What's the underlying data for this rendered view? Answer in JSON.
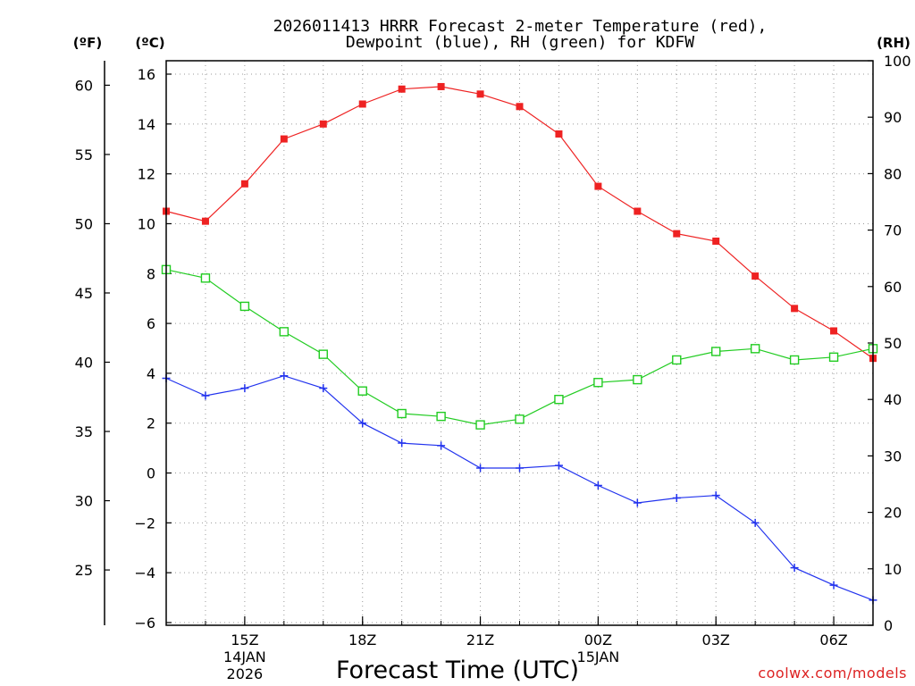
{
  "chart_data": {
    "type": "line",
    "title_line1": "2026011413 HRRR Forecast 2-meter Temperature (red),",
    "title_line2": "Dewpoint (blue), RH (green) for KDFW",
    "xlabel": "Forecast Time (UTC)",
    "unit_fahrenheit": "(ºF)",
    "unit_celsius": "(ºC)",
    "unit_rh": "(RH)",
    "credit": "coolwx.com/models",
    "x_hours": [
      13,
      14,
      15,
      16,
      17,
      18,
      19,
      20,
      21,
      22,
      23,
      24,
      25,
      26,
      27,
      28,
      29,
      30,
      31
    ],
    "xlim": [
      13,
      31
    ],
    "x_ticks": [
      {
        "hour": 15,
        "label": "15Z",
        "date": "14JAN",
        "year": "2026"
      },
      {
        "hour": 18,
        "label": "18Z"
      },
      {
        "hour": 21,
        "label": "21Z"
      },
      {
        "hour": 24,
        "label": "00Z",
        "date": "15JAN"
      },
      {
        "hour": 27,
        "label": "03Z"
      },
      {
        "hour": 30,
        "label": "06Z"
      }
    ],
    "ylim_celsius": [
      -6,
      16.5
    ],
    "ylim_rh": [
      0,
      100
    ],
    "celsius_ticks": [
      "16",
      "14",
      "12",
      "10",
      "8",
      "6",
      "4",
      "2",
      "0",
      "−2",
      "−4",
      "−6"
    ],
    "fahrenheit_ticks": [
      "60",
      "55",
      "50",
      "45",
      "40",
      "35",
      "30",
      "25"
    ],
    "rh_ticks": [
      "100",
      "90",
      "80",
      "70",
      "60",
      "50",
      "40",
      "30",
      "20",
      "10",
      "0"
    ],
    "series": [
      {
        "name": "Temperature",
        "units": "C",
        "color": "#ee2222",
        "marker": "filled-square",
        "values": [
          10.5,
          10.1,
          11.6,
          13.4,
          14.0,
          14.8,
          15.4,
          15.5,
          15.2,
          14.7,
          13.6,
          11.5,
          10.5,
          9.6,
          9.3,
          7.9,
          6.6,
          5.7,
          4.6
        ]
      },
      {
        "name": "Dewpoint",
        "units": "C",
        "color": "#2233ee",
        "marker": "plus",
        "values": [
          3.8,
          3.1,
          3.4,
          3.9,
          3.4,
          2.0,
          1.2,
          1.1,
          0.2,
          0.2,
          0.3,
          -0.5,
          -1.2,
          -1.0,
          -0.9,
          -2.0,
          -3.8,
          -4.5,
          -5.1
        ]
      },
      {
        "name": "RH",
        "units": "%",
        "color": "#22cc22",
        "marker": "hollow-square",
        "values": [
          63,
          61.5,
          56.5,
          52,
          48,
          41.5,
          37.5,
          37,
          35.5,
          36.5,
          40,
          43,
          43.5,
          47,
          48.5,
          49,
          47,
          47.5,
          49
        ]
      }
    ]
  }
}
